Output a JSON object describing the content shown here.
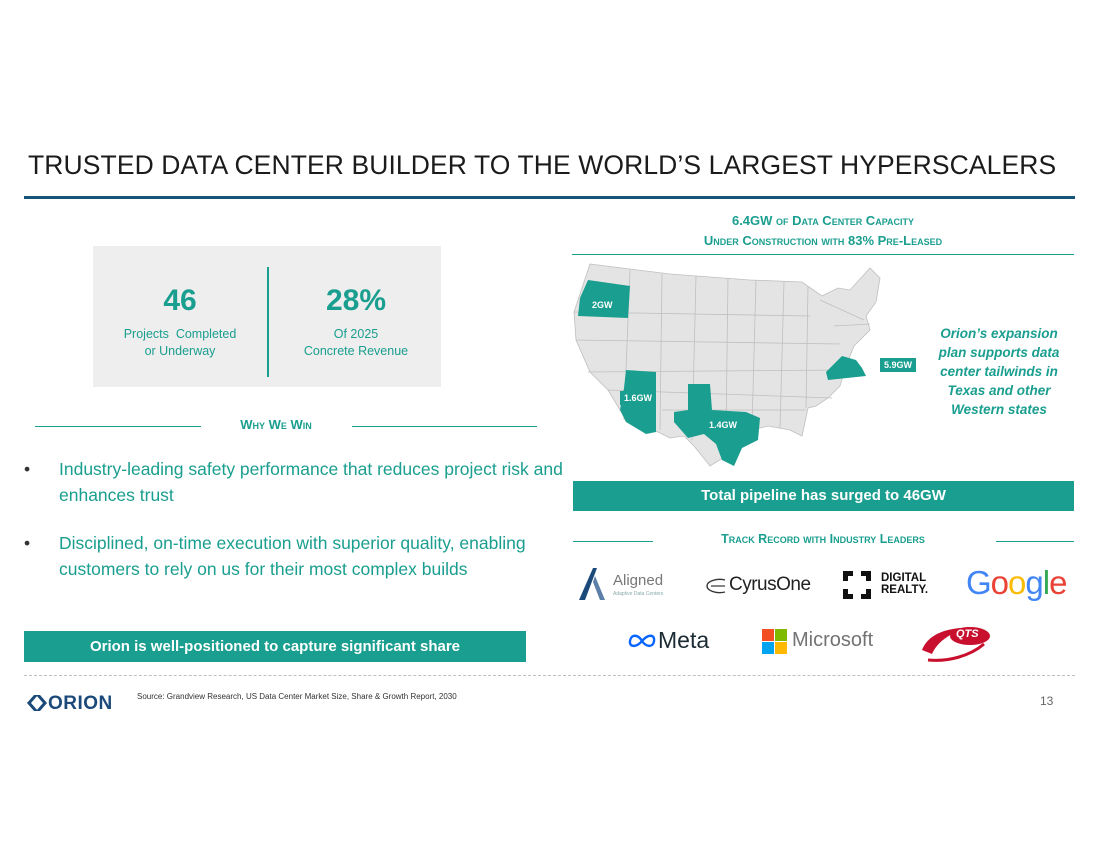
{
  "title": "TRUSTED DATA CENTER BUILDER TO THE WORLD’S LARGEST HYPERSCALERS",
  "stats": [
    {
      "value": "46",
      "label_line1": "Projects  Completed",
      "label_line2": "or Underway"
    },
    {
      "value": "28%",
      "label_line1": "Of 2025",
      "label_line2": "Concrete Revenue"
    }
  ],
  "why_we_win": {
    "heading": "Why We Win",
    "bullets": [
      "Industry-leading safety performance that reduces project risk and enhances trust",
      "Disciplined, on-time execution with superior quality, enabling customers to rely on us for their most complex builds"
    ],
    "banner": "Orion is well-positioned to capture significant share"
  },
  "capacity": {
    "heading_line1": "6.4GW of Data Center Capacity",
    "heading_line2": "Under Construction with 83% Pre-Leased",
    "states": [
      {
        "state": "Oregon",
        "label": "2GW"
      },
      {
        "state": "Arizona",
        "label": "1.6GW"
      },
      {
        "state": "Texas",
        "label": "1.4GW"
      },
      {
        "state": "Virginia",
        "label": "5.9GW"
      }
    ],
    "callout": "Orion’s expansion plan supports data center tailwinds in Texas and other Western states",
    "pipeline_banner": "Total pipeline has surged to 46GW"
  },
  "track_record": {
    "heading": "Track Record with Industry Leaders",
    "logos": {
      "aligned": {
        "name": "Aligned",
        "sub": "Adaptive Data Centers"
      },
      "cyrusone": {
        "name": "CyrusOne"
      },
      "digital_realty": {
        "line1": "DIGITAL",
        "line2": "REALTY."
      },
      "google": {
        "name": "Google"
      },
      "meta": {
        "name": "Meta"
      },
      "microsoft": {
        "name": "Microsoft"
      },
      "qts": {
        "name": "QTS"
      }
    }
  },
  "footer": {
    "logo": "ORION",
    "source": "Source: Grandview Research, US Data Center Market Size, Share & Growth Report, 2030",
    "page_number": "13"
  },
  "colors": {
    "accent": "#1a9e8f",
    "rule": "#17547a"
  }
}
